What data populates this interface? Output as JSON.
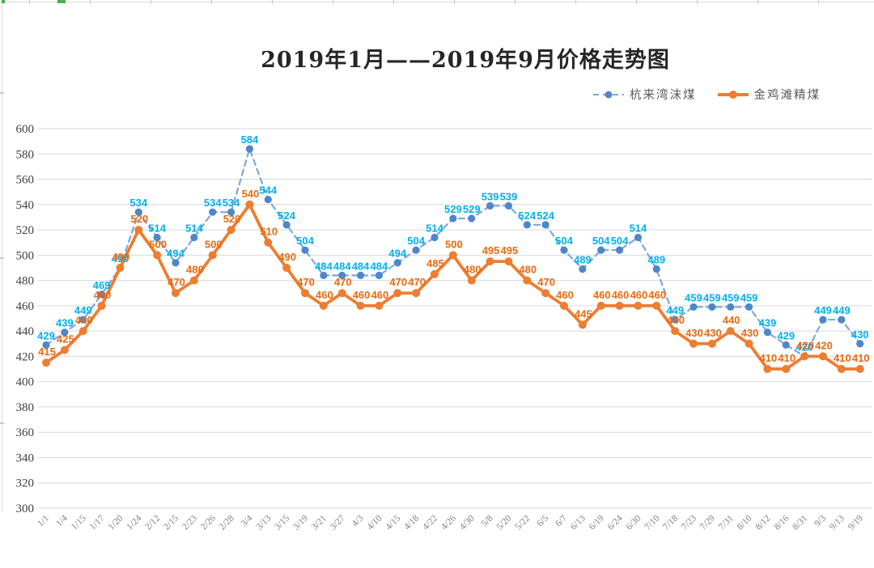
{
  "title": "2019年1月——2019年9月价格走势图",
  "legend": {
    "items": [
      {
        "label": "杭来湾沫煤",
        "style": "dashed"
      },
      {
        "label": "金鸡滩精煤",
        "style": "solid"
      }
    ]
  },
  "colors": {
    "grid": "#d9d9d9",
    "blue_line": "#7fa7dc",
    "blue_marker": "#4e87c9",
    "blue_label": "#00b0f0",
    "orange_line": "#ed7d31",
    "orange_marker": "#ed7d31",
    "orange_label": "#ea6a10"
  },
  "chart_data": {
    "type": "line",
    "title": "2019年1月——2019年9月价格走势图",
    "categories": [
      "1/1",
      "1/4",
      "1/15",
      "1/17",
      "1/20",
      "1/24",
      "2/12",
      "2/15",
      "2/23",
      "2/26",
      "2/28",
      "3/4",
      "3/13",
      "3/15",
      "3/19",
      "3/21",
      "3/27",
      "4/3",
      "4/10",
      "4/15",
      "4/18",
      "4/22",
      "4/26",
      "4/30",
      "5/8",
      "5/20",
      "5/22",
      "6/5",
      "6/7",
      "6/13",
      "6/19",
      "6/24",
      "6/30",
      "7/10",
      "7/18",
      "7/23",
      "7/29",
      "7/31",
      "8/10",
      "8/12",
      "8/16",
      "8/31",
      "9/3",
      "9/13",
      "9/19"
    ],
    "series": [
      {
        "name": "杭来湾沫煤",
        "style": "dashed",
        "line_color": "#7fa7dc",
        "marker_color": "#4e87c9",
        "label_color": "#00b0f0",
        "values": [
          429,
          439,
          449,
          469,
          490,
          534,
          514,
          494,
          514,
          534,
          534,
          584,
          544,
          524,
          504,
          484,
          484,
          484,
          484,
          494,
          504,
          514,
          529,
          529,
          539,
          539,
          524,
          524,
          504,
          489,
          504,
          504,
          514,
          489,
          449,
          459,
          459,
          459,
          459,
          439,
          429,
          420,
          449,
          449,
          430
        ]
      },
      {
        "name": "金鸡滩精煤",
        "style": "solid",
        "line_color": "#ed7d31",
        "marker_color": "#ed7d31",
        "label_color": "#ea6a10",
        "values": [
          415,
          425,
          440,
          460,
          490,
          520,
          500,
          470,
          480,
          500,
          520,
          540,
          510,
          490,
          470,
          460,
          470,
          460,
          460,
          470,
          470,
          485,
          500,
          480,
          495,
          495,
          480,
          470,
          460,
          445,
          460,
          460,
          460,
          460,
          440,
          430,
          430,
          440,
          430,
          410,
          410,
          420,
          420,
          410,
          410
        ]
      }
    ],
    "ylim": [
      300,
      600
    ],
    "ytick_step": 20,
    "grid": true,
    "legend_position": "top-right",
    "xlabel": "",
    "ylabel": ""
  }
}
